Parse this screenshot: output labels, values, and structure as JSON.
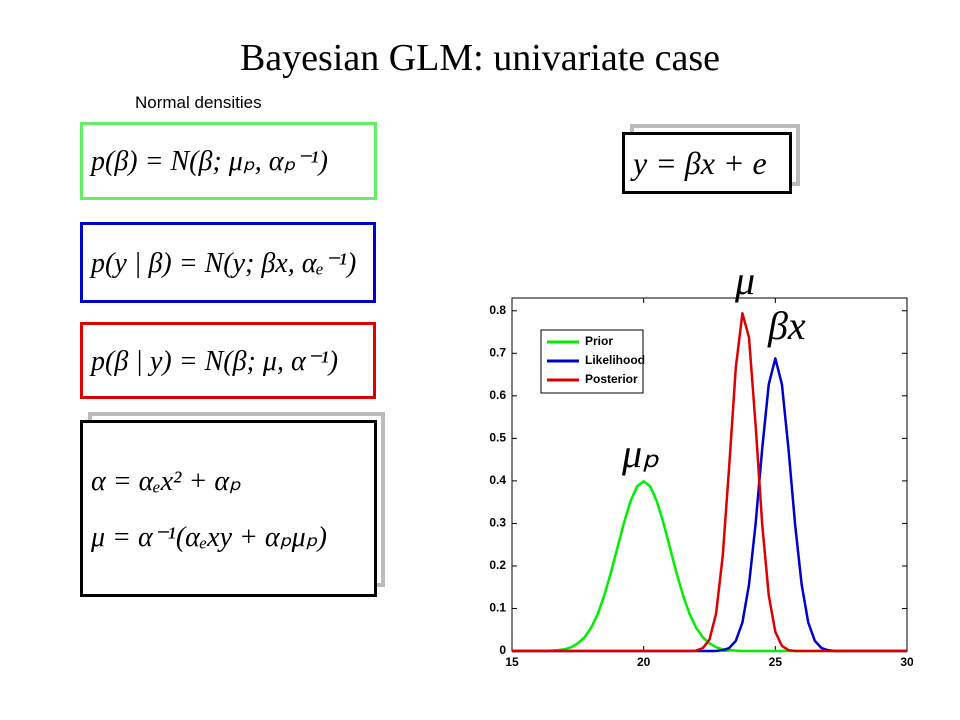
{
  "title": "Bayesian GLM: univariate case",
  "subtitle": "Normal densities",
  "equations": {
    "prior": "p(β) = N(β; μₚ, αₚ⁻¹)",
    "likelihood": "p(y | β) = N(y; βx, αₑ⁻¹)",
    "posterior": "p(β | y) = N(β; μ, α⁻¹)",
    "precision": "α = αₑx² + αₚ",
    "mean": "μ = α⁻¹(αₑxy + αₚμₚ)",
    "model": "y = βx + e"
  },
  "chart_data": {
    "type": "line",
    "annotations": [
      "μ",
      "βx",
      "μₚ"
    ],
    "x": [
      15,
      15.25,
      15.5,
      15.75,
      16,
      16.25,
      16.5,
      16.75,
      17,
      17.25,
      17.5,
      17.75,
      18,
      18.25,
      18.5,
      18.75,
      19,
      19.25,
      19.5,
      19.75,
      20,
      20.25,
      20.5,
      20.75,
      21,
      21.25,
      21.5,
      21.75,
      22,
      22.25,
      22.5,
      22.75,
      23,
      23.25,
      23.5,
      23.75,
      24,
      24.25,
      24.5,
      24.75,
      25,
      25.25,
      25.5,
      25.75,
      26,
      26.25,
      26.5,
      26.75,
      27,
      27.25,
      27.5,
      27.75,
      28,
      28.25,
      28.5,
      28.75,
      29,
      29.25,
      29.5,
      29.75,
      30
    ],
    "series": [
      {
        "name": "Prior",
        "color": "#00ee00",
        "values": [
          0,
          0,
          0,
          0,
          0,
          0,
          0.001,
          0.002,
          0.004,
          0.009,
          0.018,
          0.032,
          0.054,
          0.086,
          0.13,
          0.183,
          0.242,
          0.301,
          0.352,
          0.387,
          0.399,
          0.387,
          0.352,
          0.301,
          0.242,
          0.183,
          0.13,
          0.086,
          0.054,
          0.032,
          0.018,
          0.009,
          0.004,
          0.002,
          0.001,
          0,
          0,
          0,
          0,
          0,
          0,
          0,
          0,
          0,
          0,
          0,
          0,
          0,
          0,
          0,
          0,
          0,
          0,
          0,
          0,
          0,
          0,
          0,
          0,
          0,
          0
        ]
      },
      {
        "name": "Likelihood",
        "color": "#0000cc",
        "values": [
          0,
          0,
          0,
          0,
          0,
          0,
          0,
          0,
          0,
          0,
          0,
          0,
          0,
          0,
          0,
          0,
          0,
          0,
          0,
          0,
          0,
          0,
          0,
          0,
          0,
          0,
          0,
          0,
          0,
          0,
          0,
          0,
          0.002,
          0.007,
          0.024,
          0.067,
          0.156,
          0.298,
          0.475,
          0.627,
          0.688,
          0.627,
          0.475,
          0.298,
          0.156,
          0.067,
          0.024,
          0.007,
          0.002,
          0,
          0,
          0,
          0,
          0,
          0,
          0,
          0,
          0,
          0,
          0,
          0
        ]
      },
      {
        "name": "Posterior",
        "color": "#dd0000",
        "values": [
          0,
          0,
          0,
          0,
          0,
          0,
          0,
          0,
          0,
          0,
          0,
          0,
          0,
          0,
          0,
          0,
          0,
          0,
          0,
          0,
          0,
          0,
          0,
          0,
          0,
          0,
          0,
          0,
          0.001,
          0.007,
          0.027,
          0.088,
          0.222,
          0.436,
          0.667,
          0.794,
          0.737,
          0.532,
          0.299,
          0.131,
          0.045,
          0.012,
          0.002,
          0,
          0,
          0,
          0,
          0,
          0,
          0,
          0,
          0,
          0,
          0,
          0,
          0,
          0,
          0,
          0,
          0,
          0
        ]
      }
    ],
    "xlim": [
      15,
      30
    ],
    "ylim": [
      0,
      0.83
    ],
    "xticks": [
      15,
      20,
      25,
      30
    ],
    "yticks": [
      0,
      0.1,
      0.2,
      0.3,
      0.4,
      0.5,
      0.6,
      0.7,
      0.8
    ],
    "legend": "upper left"
  }
}
